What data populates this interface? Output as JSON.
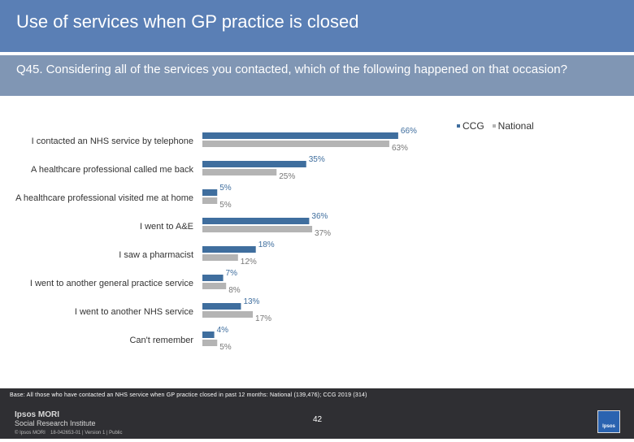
{
  "header": {
    "title": "Use of services when GP practice is closed"
  },
  "question": {
    "text": "Q45. Considering all of the services you contacted, which of the following happened on that occasion?"
  },
  "colors": {
    "ccg": "#3f6e9e",
    "national": "#b4b4b4",
    "header_bg": "#5a7fb5",
    "question_bg": "#8096b4"
  },
  "chart_data": {
    "type": "bar",
    "orientation": "horizontal",
    "categories": [
      "I contacted an NHS service by telephone",
      "A healthcare professional called me back",
      "A healthcare professional visited me at home",
      "I went to A&E",
      "I saw a pharmacist",
      "I went to another general practice service",
      "I went to another NHS service",
      "Can't remember"
    ],
    "series": [
      {
        "name": "CCG",
        "values": [
          66,
          35,
          5,
          36,
          18,
          7,
          13,
          4
        ],
        "labels": [
          "66%",
          "35%",
          "5%",
          "36%",
          "18%",
          "7%",
          "13%",
          "4%"
        ]
      },
      {
        "name": "National",
        "values": [
          63,
          25,
          5,
          37,
          12,
          8,
          17,
          5
        ],
        "labels": [
          "63%",
          "25%",
          "5%",
          "37%",
          "12%",
          "8%",
          "17%",
          "5%"
        ]
      }
    ],
    "xlim": [
      0,
      100
    ],
    "legend_position": "top-right"
  },
  "footer": {
    "base_note": "Base: All those who have contacted an NHS service when GP practice closed in past 12 months: National (139,476); CCG 2019 (314)",
    "page_number": "42",
    "logo_line1": "Ipsos MORI",
    "logo_line2": "Social Research Institute",
    "copyright": "© Ipsos MORI",
    "version": "18-042653-01 | Version 1 | Public",
    "badge": "Ipsos"
  }
}
